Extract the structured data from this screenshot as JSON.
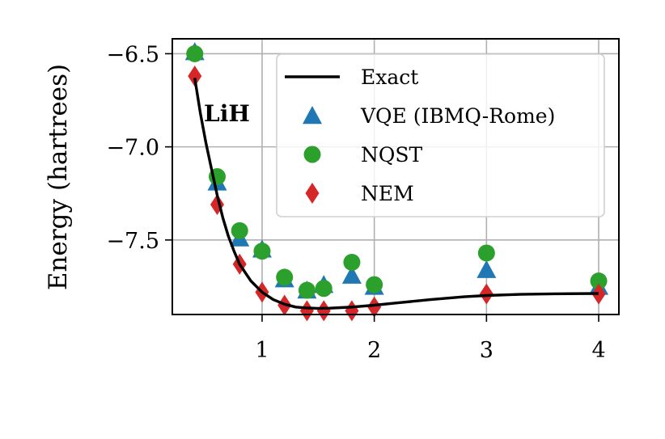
{
  "chart_data": {
    "type": "scatter",
    "title": "",
    "xlabel": "",
    "ylabel": "Energy (hartrees)",
    "annotation": "LiH",
    "xlim": [
      0.2,
      4.18
    ],
    "ylim": [
      -7.9,
      -6.42
    ],
    "xticks": [
      1,
      2,
      3,
      4
    ],
    "xtick_labels": [
      "1",
      "2",
      "3",
      "4"
    ],
    "yticks": [
      -6.5,
      -7.0,
      -7.5
    ],
    "ytick_labels": [
      "−6.5",
      "−7.0",
      "−7.5"
    ],
    "grid": true,
    "legend_position": "top-right",
    "series": [
      {
        "name": "Exact",
        "kind": "line",
        "color": "#000000",
        "x": [
          0.4,
          0.45,
          0.5,
          0.55,
          0.6,
          0.65,
          0.7,
          0.75,
          0.8,
          0.9,
          1.0,
          1.1,
          1.2,
          1.3,
          1.4,
          1.5,
          1.6,
          1.7,
          1.8,
          2.0,
          2.2,
          2.5,
          2.8,
          3.0,
          3.3,
          3.6,
          4.0
        ],
        "y": [
          -6.63,
          -6.82,
          -6.98,
          -7.12,
          -7.26,
          -7.38,
          -7.48,
          -7.56,
          -7.63,
          -7.72,
          -7.78,
          -7.82,
          -7.845,
          -7.86,
          -7.865,
          -7.867,
          -7.866,
          -7.863,
          -7.86,
          -7.85,
          -7.838,
          -7.82,
          -7.805,
          -7.798,
          -7.792,
          -7.789,
          -7.787
        ]
      },
      {
        "name": "VQE (IBMQ-Rome)",
        "kind": "marker",
        "marker": "triangle",
        "color": "#1f77b4",
        "x": [
          0.4,
          0.6,
          0.8,
          1.0,
          1.2,
          1.4,
          1.55,
          1.8,
          2.0,
          3.0,
          4.0
        ],
        "y": [
          -6.49,
          -7.19,
          -7.49,
          -7.55,
          -7.71,
          -7.77,
          -7.74,
          -7.69,
          -7.75,
          -7.66,
          -7.75
        ]
      },
      {
        "name": "NQST",
        "kind": "marker",
        "marker": "circle",
        "color": "#2ca02c",
        "x": [
          0.4,
          0.6,
          0.8,
          1.0,
          1.2,
          1.4,
          1.55,
          1.8,
          2.0,
          3.0,
          4.0
        ],
        "y": [
          -6.5,
          -7.16,
          -7.45,
          -7.56,
          -7.7,
          -7.77,
          -7.76,
          -7.62,
          -7.74,
          -7.57,
          -7.72
        ]
      },
      {
        "name": "NEM",
        "kind": "marker",
        "marker": "diamond",
        "color": "#d62728",
        "x": [
          0.4,
          0.6,
          0.8,
          1.0,
          1.2,
          1.4,
          1.55,
          1.8,
          2.0,
          3.0,
          4.0
        ],
        "y": [
          -6.62,
          -7.31,
          -7.63,
          -7.78,
          -7.85,
          -7.88,
          -7.88,
          -7.88,
          -7.86,
          -7.79,
          -7.79
        ]
      }
    ]
  }
}
